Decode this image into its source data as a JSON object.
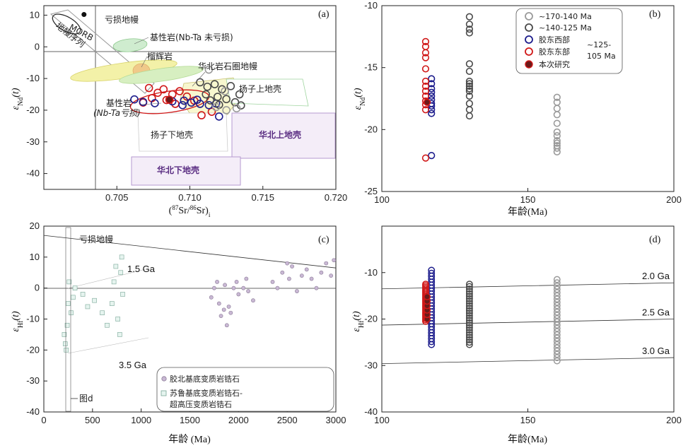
{
  "colors": {
    "group1": "#9a9a9a",
    "group2": "#4a4a4a",
    "west": "#1c1c8c",
    "east": "#d01818",
    "this_study": "#6b1a1a",
    "purple_field": "#8b5fa8",
    "green_field": "#9fd49f",
    "yellow_field": "#e8e36a"
  },
  "chart_data": [
    {
      "panel": "(a)",
      "type": "scatter",
      "xlabel_parts": [
        "(",
        "87",
        "Sr/",
        "86",
        "Sr)",
        "i"
      ],
      "ylabel_parts": [
        "ε",
        "Nd",
        "(t)"
      ],
      "xlim": [
        0.7,
        0.72
      ],
      "ylim": [
        -45,
        13
      ],
      "xticks": [
        "0.705",
        "0.710",
        "0.715",
        "0.720"
      ],
      "yticks": [
        "10",
        "0",
        "-10",
        "-20",
        "-30",
        "-40"
      ],
      "annotations": {
        "morb": "MORB",
        "depleted_mantle": "亏损地幔",
        "mantle_array": "地幔序列",
        "mafic_unaltered": "基性岩(Nb-Ta 未亏损)",
        "eclogite": "榴辉岩",
        "ncc_lithospheric_mantle": "华北岩石圈地幔",
        "yangtze_upper_crust": "扬子上地壳",
        "mafic_depleted_1": "基性岩",
        "mafic_depleted_2": "(Nb-Ta亏损)",
        "yangtze_lower_crust": "扬子下地壳",
        "ncc_upper_crust": "华北上地壳",
        "ncc_lower_crust": "华北下地壳"
      },
      "series": [
        {
          "name": "胶东东部",
          "points": [
            [
              0.7072,
              -13.0
            ],
            [
              0.7078,
              -14.5
            ],
            [
              0.7082,
              -13.4
            ],
            [
              0.7088,
              -15.0
            ],
            [
              0.7093,
              -14.0
            ],
            [
              0.7074,
              -16.2
            ],
            [
              0.7084,
              -16.8
            ],
            [
              0.7098,
              -15.7
            ],
            [
              0.7103,
              -17.0
            ],
            [
              0.7068,
              -17.6
            ],
            [
              0.7108,
              -21.6
            ],
            [
              0.7115,
              -20.5
            ],
            [
              0.709,
              -18.0
            ]
          ]
        },
        {
          "name": "胶东西部",
          "points": [
            [
              0.7062,
              -16.6
            ],
            [
              0.7068,
              -17.4
            ],
            [
              0.7076,
              -17.8
            ],
            [
              0.7088,
              -17.2
            ],
            [
              0.7095,
              -18.4
            ],
            [
              0.7101,
              -17.6
            ],
            [
              0.7107,
              -18.0
            ],
            [
              0.7113,
              -18.4
            ],
            [
              0.7105,
              -16.7
            ],
            [
              0.7118,
              -17.9
            ],
            [
              0.712,
              -22.0
            ],
            [
              0.7096,
              -17.0
            ]
          ]
        },
        {
          "name": "~140-125 Ma",
          "points": [
            [
              0.7107,
              -11.2
            ],
            [
              0.7112,
              -12.6
            ],
            [
              0.7117,
              -11.8
            ],
            [
              0.7122,
              -13.4
            ],
            [
              0.7128,
              -12.4
            ],
            [
              0.7111,
              -15.0
            ],
            [
              0.7119,
              -15.8
            ],
            [
              0.7125,
              -16.5
            ],
            [
              0.7131,
              -17.5
            ],
            [
              0.7114,
              -16.9
            ],
            [
              0.7135,
              -18.5
            ],
            [
              0.712,
              -18.3
            ],
            [
              0.7134,
              -15.0
            ]
          ]
        },
        {
          "name": "~170-140 Ma",
          "points": [
            [
              0.7113,
              -7.2
            ],
            [
              0.7124,
              -14.0
            ],
            [
              0.7125,
              -20.0
            ],
            [
              0.7132,
              -19.4
            ],
            [
              0.7118,
              -19.0
            ]
          ]
        },
        {
          "name": "本次研究",
          "points": [
            [
              0.7086,
              -16.7
            ]
          ]
        }
      ]
    },
    {
      "panel": "(b)",
      "type": "scatter",
      "xlabel": "年龄(Ma)",
      "ylabel_parts": [
        "ε",
        "Nd",
        "(t)"
      ],
      "xlim": [
        100,
        200
      ],
      "ylim": [
        -25,
        -10
      ],
      "xticks": [
        "100",
        "150",
        "200"
      ],
      "yticks": [
        "-10",
        "-15",
        "-20",
        "-25"
      ],
      "legend": [
        "~170-140 Ma",
        "~140-125 Ma",
        "胶东西部",
        "胶东东部",
        "~125-",
        "105 Ma",
        "本次研究"
      ],
      "series": [
        {
          "name": "~170-140 Ma",
          "x": 160,
          "values": [
            -17.4,
            -17.8,
            -18.3,
            -18.8,
            -19.5,
            -20.2,
            -20.5,
            -20.9,
            -21.1,
            -21.3,
            -21.5,
            -21.8
          ]
        },
        {
          "name": "~140-125 Ma",
          "x": 130,
          "values": [
            -10.9,
            -11.5,
            -11.9,
            -12.2,
            -14.7,
            -15.3,
            -16.1,
            -16.3,
            -16.5,
            -16.7,
            -16.9,
            -17.3,
            -17.9,
            -18.4,
            -18.9
          ]
        },
        {
          "name": "胶东西部",
          "x": 117,
          "values": [
            -15.9,
            -16.3,
            -16.7,
            -17.0,
            -17.3,
            -17.6,
            -17.9,
            -18.1,
            -18.4,
            -18.7,
            -22.1
          ]
        },
        {
          "name": "胶东东部",
          "x": 115,
          "values": [
            -12.9,
            -13.3,
            -13.8,
            -14.2,
            -15.1,
            -16.1,
            -16.5,
            -16.9,
            -17.3,
            -17.7,
            -18.0,
            -18.4,
            -22.3
          ]
        },
        {
          "name": "本次研究",
          "x": 115.5,
          "values": [
            -17.8
          ]
        }
      ]
    },
    {
      "panel": "(c)",
      "type": "scatter",
      "xlabel": "年龄 (Ma)",
      "ylabel_parts": [
        "ε",
        "Hf",
        "(t)"
      ],
      "xlim": [
        0,
        3000
      ],
      "ylim": [
        -40,
        20
      ],
      "xticks": [
        "0",
        "500",
        "1000",
        "1500",
        "2000",
        "2500",
        "3000"
      ],
      "yticks": [
        "20",
        "10",
        "0",
        "-10",
        "-20",
        "-30",
        "-40"
      ],
      "depleted_mantle_line": [
        [
          0,
          17
        ],
        [
          3000,
          6.5
        ]
      ],
      "annotations": {
        "depleted_mantle": "亏损地幔",
        "ga15": "1.5 Ga",
        "ga35": "3.5 Ga",
        "fig_d": "图d"
      },
      "legend": [
        "胶北基底变质岩锆石",
        "苏鲁基底变质岩锆石-",
        "超高压变质岩锆石"
      ],
      "series": [
        {
          "name": "胶北基底变质岩锆石",
          "points": [
            [
              1720,
              -3
            ],
            [
              1750,
              0
            ],
            [
              1780,
              2
            ],
            [
              1800,
              -5
            ],
            [
              1820,
              -9
            ],
            [
              1850,
              -7
            ],
            [
              1860,
              1
            ],
            [
              1880,
              -12
            ],
            [
              1900,
              -6
            ],
            [
              1920,
              -8
            ],
            [
              1950,
              0
            ],
            [
              1980,
              2
            ],
            [
              2000,
              -2
            ],
            [
              2050,
              0
            ],
            [
              2080,
              3
            ],
            [
              2100,
              -1
            ],
            [
              2150,
              -4
            ],
            [
              2350,
              2
            ],
            [
              2400,
              0
            ],
            [
              2450,
              5
            ],
            [
              2500,
              8
            ],
            [
              2520,
              3
            ],
            [
              2550,
              7
            ],
            [
              2600,
              -1
            ],
            [
              2650,
              4
            ],
            [
              2700,
              6
            ],
            [
              2750,
              3
            ],
            [
              2800,
              0
            ],
            [
              2850,
              5
            ],
            [
              2900,
              8
            ],
            [
              2950,
              4
            ],
            [
              2980,
              9
            ]
          ]
        },
        {
          "name": "苏鲁基底变质岩锆石-超高压变质岩锆石",
          "points": [
            [
              210,
              -15
            ],
            [
              220,
              -18
            ],
            [
              230,
              -20
            ],
            [
              240,
              -12
            ],
            [
              250,
              -5
            ],
            [
              260,
              2
            ],
            [
              280,
              -8
            ],
            [
              300,
              -3
            ],
            [
              320,
              0
            ],
            [
              400,
              -2
            ],
            [
              450,
              -6
            ],
            [
              520,
              -4
            ],
            [
              600,
              -8
            ],
            [
              650,
              -12
            ],
            [
              700,
              -5
            ],
            [
              720,
              2
            ],
            [
              740,
              7
            ],
            [
              760,
              -10
            ],
            [
              780,
              -15
            ],
            [
              790,
              5
            ],
            [
              800,
              10
            ],
            [
              810,
              -2
            ]
          ]
        }
      ]
    },
    {
      "panel": "(d)",
      "type": "scatter",
      "xlabel": "年龄(Ma)",
      "ylabel_parts": [
        "ε",
        "Hf",
        "(t)"
      ],
      "xlim": [
        100,
        200
      ],
      "ylim": [
        -40,
        0
      ],
      "xticks": [
        "100",
        "150",
        "200"
      ],
      "yticks": [
        "-10",
        "-20",
        "-30",
        "-40"
      ],
      "reference_lines": [
        {
          "label": "2.0 Ga",
          "y_start": -13.5,
          "y_end": -12.2
        },
        {
          "label": "2.5 Ga",
          "y_start": -21.3,
          "y_end": -20.0
        },
        {
          "label": "3.0 Ga",
          "y_start": -29.6,
          "y_end": -28.3
        }
      ],
      "series": [
        {
          "name": "~170-140 Ma",
          "x": 160,
          "ymin": -29,
          "ymax": -11.5
        },
        {
          "name": "~140-125 Ma",
          "x": 130,
          "ymin": -25.5,
          "ymax": -12.5
        },
        {
          "name": "胶东西部",
          "x": 117,
          "ymin": -25.5,
          "ymax": -9.5
        },
        {
          "name": "胶东东部",
          "x": 115,
          "ymin": -20.5,
          "ymax": -12.5
        },
        {
          "name": "本次研究",
          "x": 115.5,
          "ymin": -20,
          "ymax": -15.2
        }
      ]
    }
  ]
}
